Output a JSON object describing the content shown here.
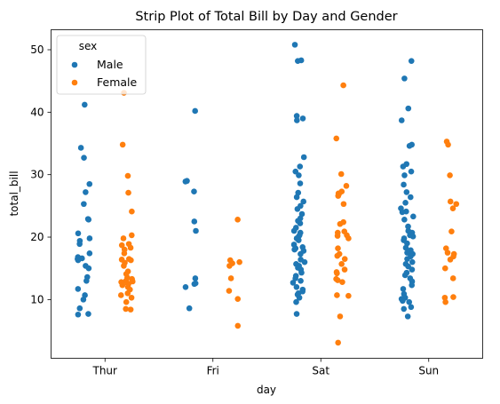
{
  "chart_data": {
    "type": "scatter",
    "subtype": "strip",
    "title": "Strip Plot of Total Bill by Day and Gender",
    "xlabel": "day",
    "ylabel": "total_bill",
    "categories": [
      "Thur",
      "Fri",
      "Sat",
      "Sun"
    ],
    "ylim": [
      0.6,
      53.2
    ],
    "yticks": [
      10,
      20,
      30,
      40,
      50
    ],
    "grid": false,
    "legend": {
      "title": "sex",
      "placement": "top-left"
    },
    "series": [
      {
        "name": "Male",
        "color": "#1f77b4",
        "groups": {
          "Thur": [
            41.2,
            34.3,
            32.7,
            28.5,
            27.2,
            25.3,
            22.9,
            22.8,
            20.6,
            19.8,
            19.4,
            18.9,
            17.4,
            16.8,
            16.6,
            16.5,
            16.3,
            15.4,
            15.0,
            13.6,
            13.0,
            11.7,
            10.7,
            10.0,
            8.6,
            7.7,
            7.6
          ],
          "Fri": [
            40.2,
            29.0,
            28.9,
            27.3,
            22.5,
            21.0,
            13.4,
            12.6,
            12.5,
            12.0,
            8.6
          ],
          "Sat": [
            50.8,
            48.3,
            48.2,
            39.4,
            39.0,
            38.7,
            32.8,
            31.3,
            30.5,
            29.9,
            28.6,
            27.1,
            26.4,
            25.7,
            25.0,
            24.5,
            23.7,
            23.0,
            22.6,
            22.2,
            21.5,
            21.0,
            20.7,
            20.3,
            20.1,
            19.8,
            19.5,
            18.8,
            18.4,
            18.2,
            18.0,
            17.8,
            17.3,
            16.4,
            16.0,
            15.7,
            15.4,
            15.1,
            14.8,
            14.3,
            13.8,
            13.4,
            13.0,
            12.7,
            12.0,
            11.6,
            11.3,
            11.0,
            10.8,
            10.3,
            9.6,
            7.7
          ],
          "Sun": [
            48.2,
            45.4,
            40.6,
            38.7,
            34.8,
            34.6,
            31.7,
            31.3,
            30.5,
            29.9,
            28.4,
            27.2,
            26.4,
            25.5,
            24.6,
            24.1,
            24.0,
            23.3,
            22.8,
            21.7,
            21.0,
            20.7,
            20.3,
            20.1,
            19.8,
            19.5,
            19.0,
            18.3,
            17.9,
            17.5,
            17.3,
            16.9,
            16.5,
            16.0,
            15.7,
            15.3,
            14.8,
            14.3,
            13.9,
            13.4,
            12.9,
            12.3,
            11.7,
            10.9,
            10.3,
            10.1,
            9.8,
            9.6,
            8.8,
            8.5,
            7.3
          ]
        }
      },
      {
        "name": "Female",
        "color": "#ff7f0e",
        "groups": {
          "Thur": [
            43.1,
            34.8,
            29.8,
            27.1,
            24.1,
            20.3,
            19.8,
            18.9,
            18.7,
            18.3,
            18.0,
            17.4,
            16.5,
            16.4,
            16.3,
            15.9,
            15.4,
            14.5,
            14.1,
            13.5,
            13.3,
            13.0,
            12.9,
            12.8,
            12.6,
            12.5,
            12.3,
            12.0,
            11.6,
            11.0,
            10.7,
            10.3,
            9.6,
            8.5,
            8.4
          ],
          "Fri": [
            22.8,
            16.3,
            16.0,
            15.8,
            15.4,
            13.4,
            11.4,
            10.1,
            5.8
          ],
          "Sat": [
            44.3,
            35.8,
            30.1,
            28.2,
            27.3,
            27.0,
            26.9,
            26.6,
            25.3,
            22.4,
            22.1,
            20.9,
            20.7,
            20.3,
            20.2,
            19.8,
            18.2,
            17.3,
            17.0,
            16.5,
            15.7,
            14.8,
            14.4,
            14.2,
            13.3,
            13.1,
            12.8,
            10.7,
            10.6,
            7.3,
            3.1
          ],
          "Sun": [
            35.3,
            34.8,
            29.9,
            25.7,
            25.3,
            24.6,
            20.9,
            18.2,
            17.5,
            17.3,
            16.9,
            16.4,
            15.0,
            13.4,
            10.4,
            10.3,
            9.6
          ]
        }
      }
    ]
  }
}
